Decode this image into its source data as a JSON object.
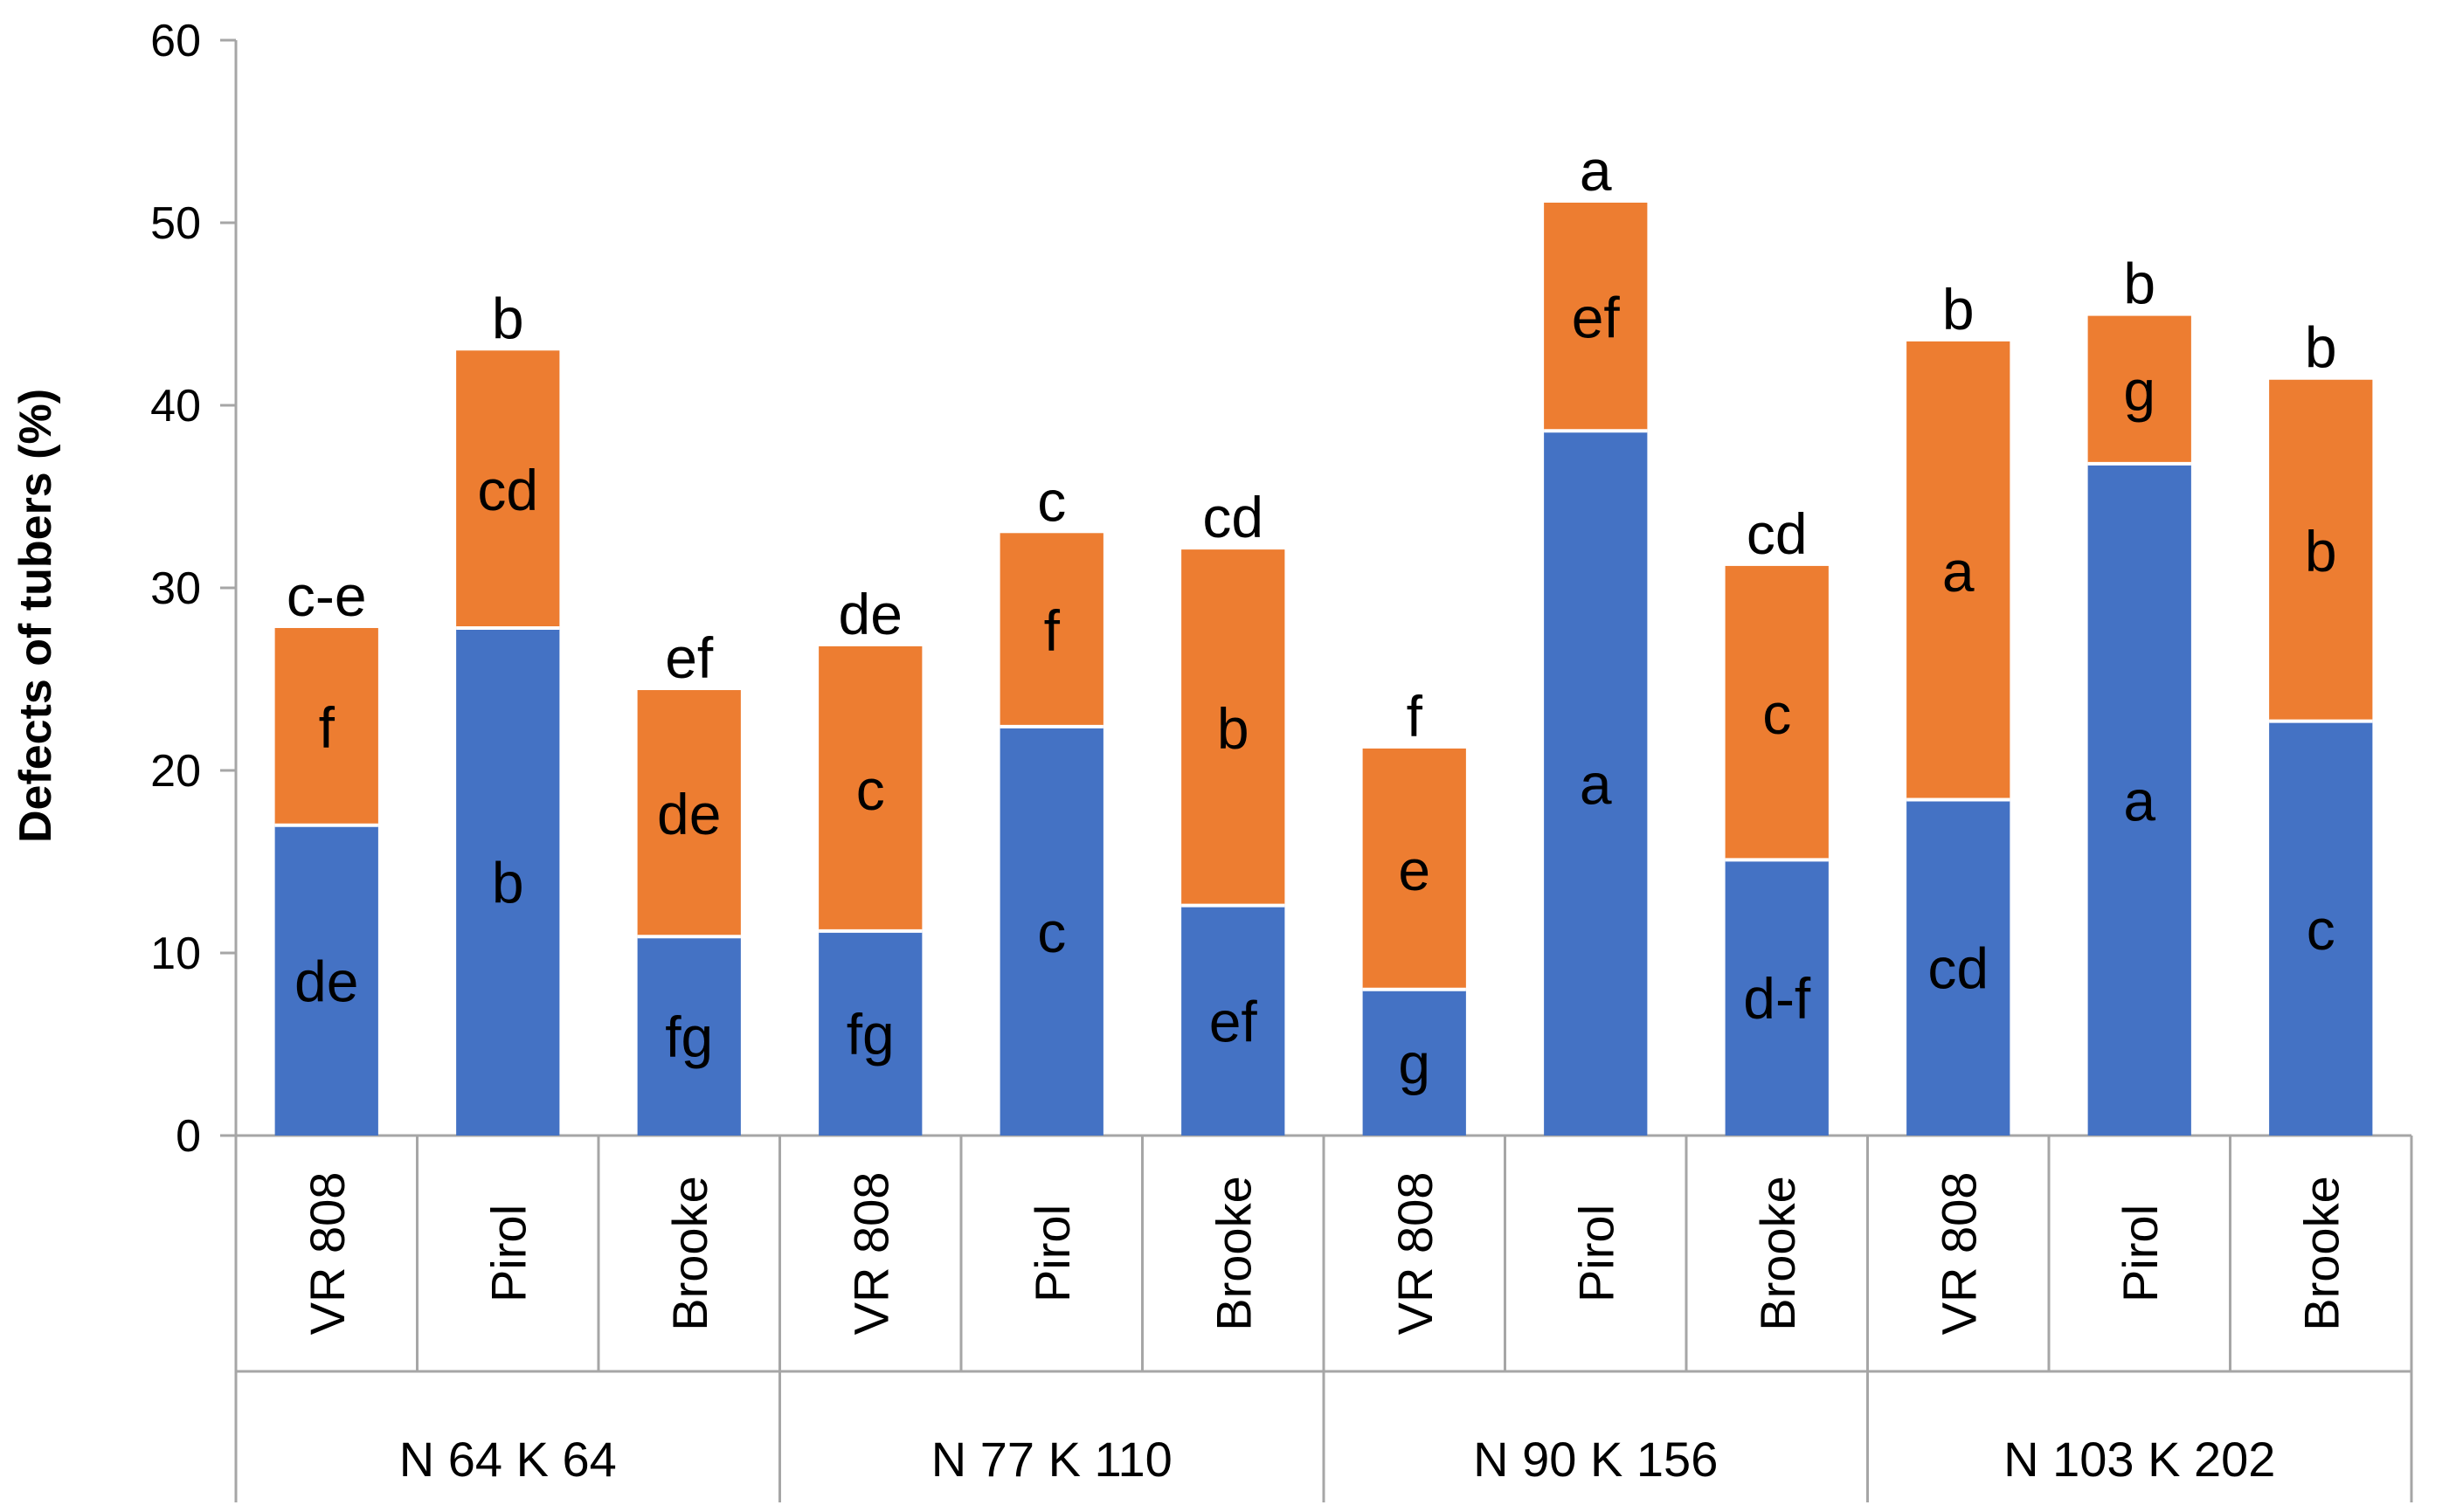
{
  "chart_data": {
    "type": "bar",
    "stacked": true,
    "ylabel": "Defects of tubers (%)",
    "xlabel": "",
    "ylim": [
      0,
      60
    ],
    "yticks": [
      0,
      10,
      20,
      30,
      40,
      50,
      60
    ],
    "groups": [
      {
        "label": "N 64 K 64",
        "bars": [
          {
            "category": "VR 808",
            "bottom": 17.0,
            "top": 10.8,
            "bottom_letter": "de",
            "top_letter": "f",
            "total_letter": "c-e"
          },
          {
            "category": "Pirol",
            "bottom": 27.8,
            "top": 15.2,
            "bottom_letter": "b",
            "top_letter": "cd",
            "total_letter": "b"
          },
          {
            "category": "Brooke",
            "bottom": 10.9,
            "top": 13.5,
            "bottom_letter": "fg",
            "top_letter": "de",
            "total_letter": "ef"
          }
        ]
      },
      {
        "label": "N 77 K 110",
        "bars": [
          {
            "category": "VR 808",
            "bottom": 11.2,
            "top": 15.6,
            "bottom_letter": "fg",
            "top_letter": "c",
            "total_letter": "de"
          },
          {
            "category": "Pirol",
            "bottom": 22.4,
            "top": 10.6,
            "bottom_letter": "c",
            "top_letter": "f",
            "total_letter": "c"
          },
          {
            "category": "Brooke",
            "bottom": 12.6,
            "top": 19.5,
            "bottom_letter": "ef",
            "top_letter": "b",
            "total_letter": "cd"
          }
        ]
      },
      {
        "label": "N 90 K 156",
        "bars": [
          {
            "category": "VR 808",
            "bottom": 8.0,
            "top": 13.2,
            "bottom_letter": "g",
            "top_letter": "e",
            "total_letter": "f"
          },
          {
            "category": "Pirol",
            "bottom": 38.6,
            "top": 12.5,
            "bottom_letter": "a",
            "top_letter": "ef",
            "total_letter": "a"
          },
          {
            "category": "Brooke",
            "bottom": 15.1,
            "top": 16.1,
            "bottom_letter": "d-f",
            "top_letter": "c",
            "total_letter": "cd"
          }
        ]
      },
      {
        "label": "N 103 K 202",
        "bars": [
          {
            "category": "VR 808",
            "bottom": 18.4,
            "top": 25.1,
            "bottom_letter": "cd",
            "top_letter": "a",
            "total_letter": "b"
          },
          {
            "category": "Pirol",
            "bottom": 36.8,
            "top": 8.1,
            "bottom_letter": "a",
            "top_letter": "g",
            "total_letter": "b"
          },
          {
            "category": "Brooke",
            "bottom": 22.7,
            "top": 18.7,
            "bottom_letter": "c",
            "top_letter": "b",
            "total_letter": "b"
          }
        ]
      }
    ],
    "colors": {
      "bottom": "#4472C4",
      "top": "#ED7D31"
    }
  }
}
